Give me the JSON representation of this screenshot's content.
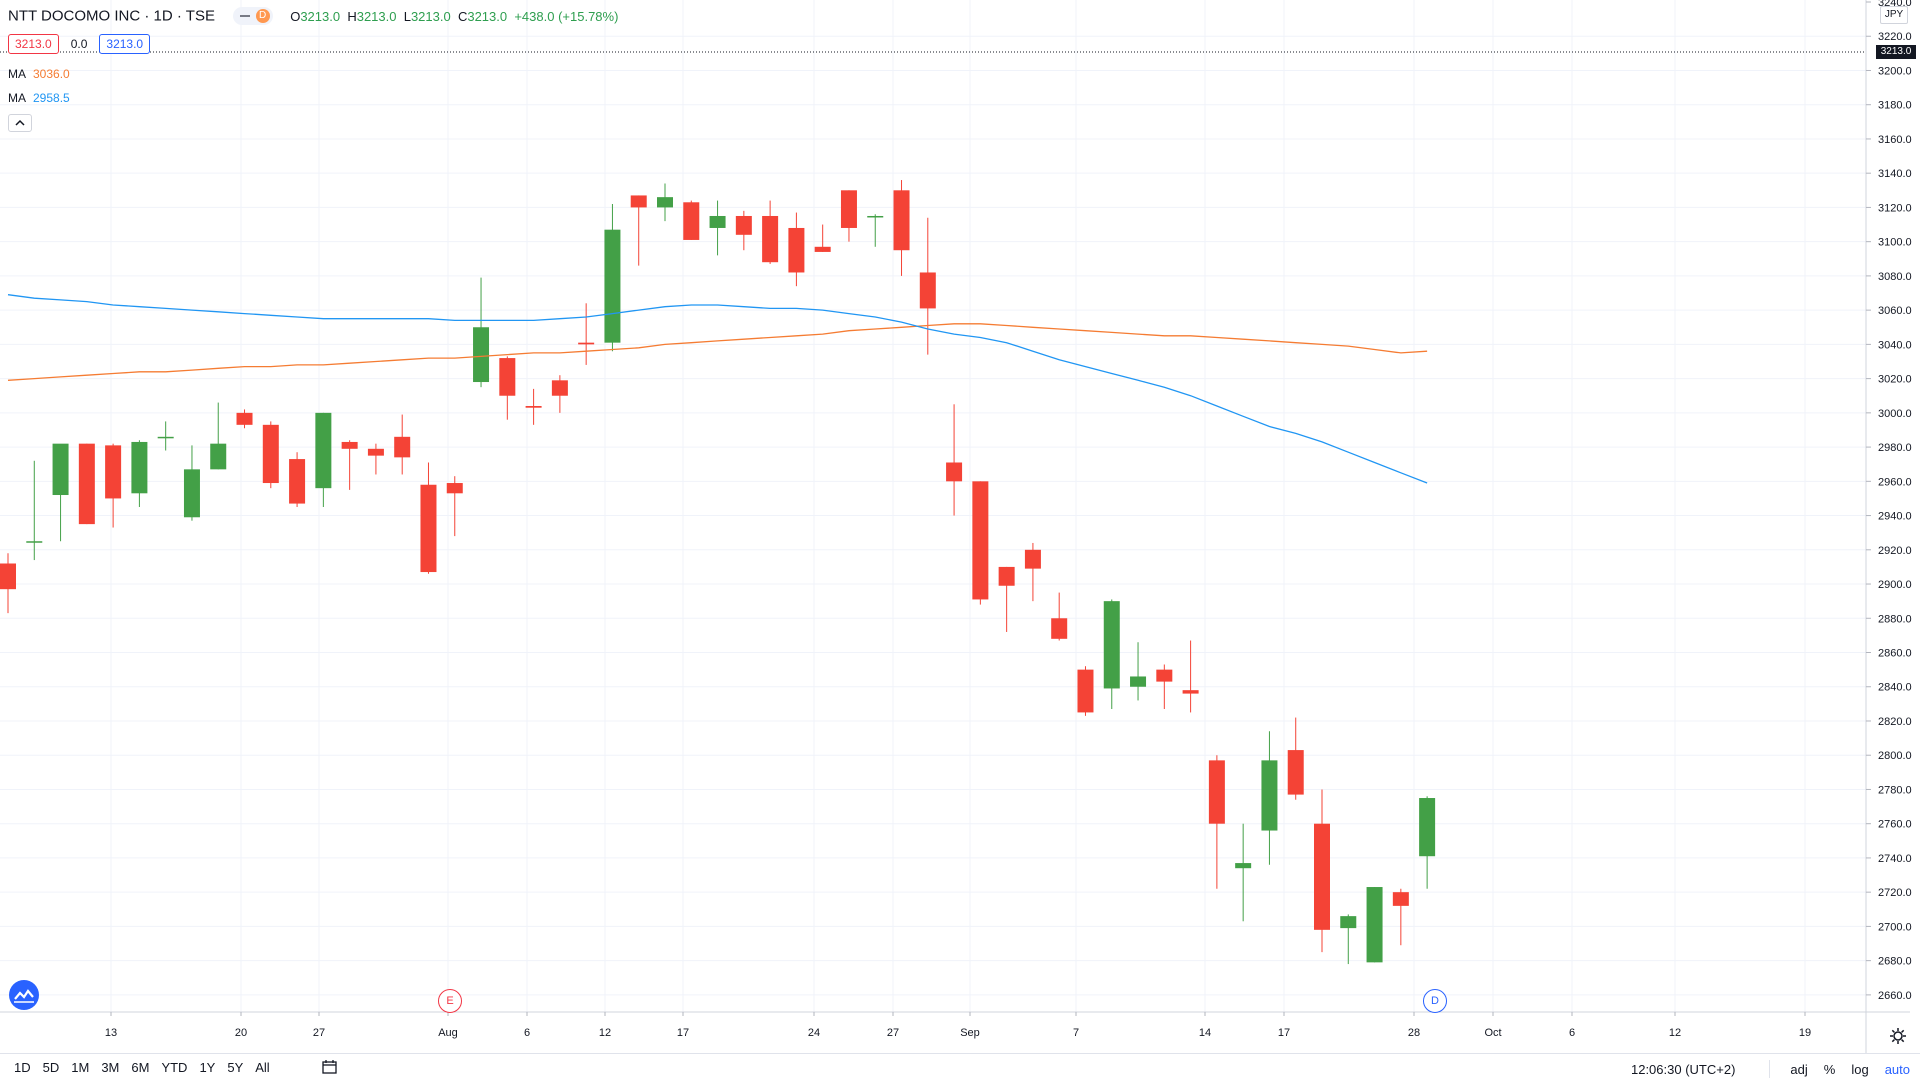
{
  "header": {
    "title": "NTT DOCOMO INC · 1D · TSE",
    "badge_letter": "D",
    "open_label": "O",
    "open": "3213.0",
    "high_label": "H",
    "high": "3213.0",
    "low_label": "L",
    "low": "3213.0",
    "close_label": "C",
    "close": "3213.0",
    "change": "+438.0 (+15.78%)",
    "bid": "3213.0",
    "spread": "0.0",
    "ask": "3213.0"
  },
  "indicators": [
    {
      "label": "MA",
      "value": "3036.0",
      "color": "#f57c33"
    },
    {
      "label": "MA",
      "value": "2958.5",
      "color": "#2196f3"
    }
  ],
  "price_scale": {
    "currency": "JPY",
    "last_price": "3213.0",
    "ticks": [
      "3240.0",
      "3220.0",
      "3200.0",
      "3180.0",
      "3160.0",
      "3140.0",
      "3120.0",
      "3100.0",
      "3080.0",
      "3060.0",
      "3040.0",
      "3020.0",
      "3000.0",
      "2980.0",
      "2960.0",
      "2940.0",
      "2920.0",
      "2900.0",
      "2880.0",
      "2860.0",
      "2840.0",
      "2820.0",
      "2800.0",
      "2780.0",
      "2760.0",
      "2740.0",
      "2720.0",
      "2700.0",
      "2680.0",
      "2660.0"
    ]
  },
  "time_scale": {
    "labels": [
      "13",
      "20",
      "27",
      "Aug",
      "6",
      "12",
      "17",
      "24",
      "27",
      "Sep",
      "7",
      "14",
      "17",
      "28",
      "Oct",
      "6",
      "12",
      "19"
    ]
  },
  "events": {
    "earnings": "E",
    "dividend": "D"
  },
  "bottom_bar": {
    "ranges": [
      "1D",
      "5D",
      "1M",
      "3M",
      "6M",
      "YTD",
      "1Y",
      "5Y",
      "All"
    ],
    "clock": "12:06:30 (UTC+2)",
    "options": [
      "adj",
      "%",
      "log",
      "auto"
    ]
  },
  "chart_data": {
    "type": "candlestick",
    "symbol": "NTT DOCOMO INC",
    "interval": "1D",
    "exchange": "TSE",
    "ylim": [
      2650,
      3240
    ],
    "up_color": "#43a047",
    "down_color": "#f44336",
    "candles": [
      {
        "o": 2912,
        "h": 2918,
        "l": 2883,
        "c": 2897
      },
      {
        "o": 2925,
        "h": 2972,
        "l": 2914,
        "c": 2925
      },
      {
        "o": 2952,
        "h": 2980,
        "l": 2925,
        "c": 2982
      },
      {
        "o": 2982,
        "h": 2982,
        "l": 2935,
        "c": 2935
      },
      {
        "o": 2981,
        "h": 2982,
        "l": 2933,
        "c": 2950
      },
      {
        "o": 2953,
        "h": 2984,
        "l": 2945,
        "c": 2983
      },
      {
        "o": 2986,
        "h": 2995,
        "l": 2978,
        "c": 2986
      },
      {
        "o": 2939,
        "h": 2981,
        "l": 2937,
        "c": 2967
      },
      {
        "o": 2967,
        "h": 3006,
        "l": 2967,
        "c": 2982
      },
      {
        "o": 3000,
        "h": 3002,
        "l": 2991,
        "c": 2993
      },
      {
        "o": 2993,
        "h": 2995,
        "l": 2956,
        "c": 2959
      },
      {
        "o": 2973,
        "h": 2977,
        "l": 2945,
        "c": 2947
      },
      {
        "o": 2956,
        "h": 3000,
        "l": 2945,
        "c": 3000
      },
      {
        "o": 2983,
        "h": 2984,
        "l": 2955,
        "c": 2979
      },
      {
        "o": 2979,
        "h": 2982,
        "l": 2964,
        "c": 2975
      },
      {
        "o": 2986,
        "h": 2999,
        "l": 2964,
        "c": 2974
      },
      {
        "o": 2958,
        "h": 2971,
        "l": 2906,
        "c": 2907
      },
      {
        "o": 2959,
        "h": 2963,
        "l": 2928,
        "c": 2953
      },
      {
        "o": 3018,
        "h": 3079,
        "l": 3015,
        "c": 3050
      },
      {
        "o": 3032,
        "h": 3033,
        "l": 2996,
        "c": 3010
      },
      {
        "o": 3004,
        "h": 3014,
        "l": 2993,
        "c": 3003
      },
      {
        "o": 3019,
        "h": 3022,
        "l": 3000,
        "c": 3010
      },
      {
        "o": 3041,
        "h": 3064,
        "l": 3028,
        "c": 3040
      },
      {
        "o": 3041,
        "h": 3122,
        "l": 3036,
        "c": 3107
      },
      {
        "o": 3127,
        "h": 3127,
        "l": 3086,
        "c": 3120
      },
      {
        "o": 3120,
        "h": 3134,
        "l": 3112,
        "c": 3126
      },
      {
        "o": 3123,
        "h": 3124,
        "l": 3101,
        "c": 3101
      },
      {
        "o": 3108,
        "h": 3124,
        "l": 3092,
        "c": 3115
      },
      {
        "o": 3115,
        "h": 3118,
        "l": 3095,
        "c": 3104
      },
      {
        "o": 3115,
        "h": 3124,
        "l": 3087,
        "c": 3088
      },
      {
        "o": 3108,
        "h": 3117,
        "l": 3074,
        "c": 3082
      },
      {
        "o": 3097,
        "h": 3110,
        "l": 3094,
        "c": 3094
      },
      {
        "o": 3130,
        "h": 3130,
        "l": 3100,
        "c": 3108
      },
      {
        "o": 3115,
        "h": 3116,
        "l": 3097,
        "c": 3115
      },
      {
        "o": 3130,
        "h": 3136,
        "l": 3080,
        "c": 3095
      },
      {
        "o": 3082,
        "h": 3114,
        "l": 3034,
        "c": 3061
      },
      {
        "o": 2971,
        "h": 3005,
        "l": 2940,
        "c": 2960
      },
      {
        "o": 2960,
        "h": 2960,
        "l": 2888,
        "c": 2891
      },
      {
        "o": 2910,
        "h": 2910,
        "l": 2872,
        "c": 2899
      },
      {
        "o": 2920,
        "h": 2924,
        "l": 2890,
        "c": 2909
      },
      {
        "o": 2880,
        "h": 2895,
        "l": 2867,
        "c": 2868
      },
      {
        "o": 2850,
        "h": 2852,
        "l": 2823,
        "c": 2825
      },
      {
        "o": 2839,
        "h": 2891,
        "l": 2827,
        "c": 2890
      },
      {
        "o": 2840,
        "h": 2866,
        "l": 2832,
        "c": 2846
      },
      {
        "o": 2850,
        "h": 2853,
        "l": 2827,
        "c": 2843
      },
      {
        "o": 2838,
        "h": 2867,
        "l": 2825,
        "c": 2836
      },
      {
        "o": 2797,
        "h": 2800,
        "l": 2722,
        "c": 2760
      },
      {
        "o": 2734,
        "h": 2760,
        "l": 2703,
        "c": 2737
      },
      {
        "o": 2756,
        "h": 2814,
        "l": 2736,
        "c": 2797
      },
      {
        "o": 2803,
        "h": 2822,
        "l": 2774,
        "c": 2777
      },
      {
        "o": 2760,
        "h": 2780,
        "l": 2685,
        "c": 2698
      },
      {
        "o": 2699,
        "h": 2707,
        "l": 2678,
        "c": 2706
      },
      {
        "o": 2679,
        "h": 2723,
        "l": 2679,
        "c": 2723
      },
      {
        "o": 2720,
        "h": 2722,
        "l": 2689,
        "c": 2712
      },
      {
        "o": 2741,
        "h": 2776,
        "l": 2722,
        "c": 2775
      }
    ],
    "series": [
      {
        "name": "MA",
        "color": "#f57c33",
        "values": [
          3019,
          3020,
          3021,
          3022,
          3023,
          3024,
          3024,
          3025,
          3026,
          3027,
          3027,
          3028,
          3028,
          3029,
          3030,
          3031,
          3032,
          3032,
          3033,
          3034,
          3035,
          3035,
          3036,
          3037,
          3038,
          3040,
          3041,
          3042,
          3043,
          3044,
          3045,
          3046,
          3048,
          3049,
          3050,
          3051,
          3052,
          3052,
          3051,
          3050,
          3049,
          3048,
          3047,
          3046,
          3045,
          3045,
          3044,
          3043,
          3042,
          3041,
          3040,
          3039,
          3037,
          3035,
          3036
        ]
      },
      {
        "name": "MA",
        "color": "#2196f3",
        "values": [
          3069,
          3067,
          3066,
          3065,
          3063,
          3062,
          3061,
          3060,
          3059,
          3058,
          3057,
          3056,
          3055,
          3055,
          3055,
          3055,
          3055,
          3054,
          3054,
          3054,
          3054,
          3055,
          3056,
          3058,
          3060,
          3062,
          3063,
          3063,
          3062,
          3061,
          3061,
          3060,
          3058,
          3056,
          3053,
          3049,
          3046,
          3044,
          3041,
          3036,
          3031,
          3027,
          3023,
          3019,
          3015,
          3010,
          3004,
          2998,
          2992,
          2988,
          2983,
          2977,
          2971,
          2965,
          2959
        ]
      }
    ]
  }
}
